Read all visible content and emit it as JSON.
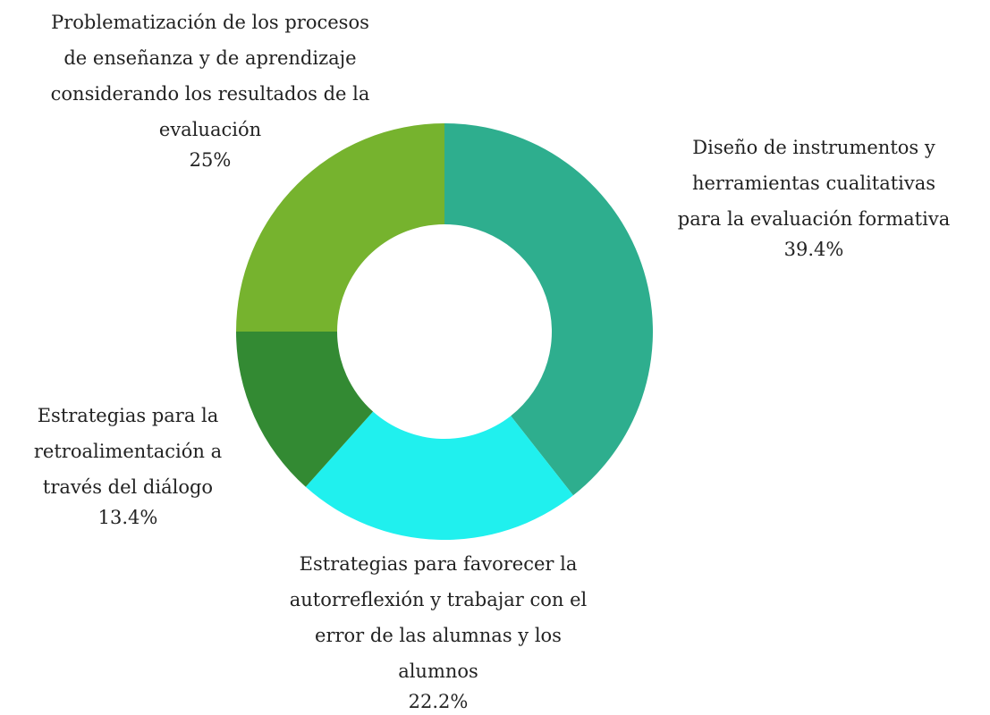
{
  "chart_data": {
    "type": "donut",
    "categories": [
      "Diseño de instrumentos y herramientas cualitativas para la evaluación formativa",
      "Estrategias para favorecer la autorreflexión y trabajar con el error de las alumnas y los alumnos",
      "Estrategias para la retroalimentación a través del diálogo",
      "Problematización de los procesos de enseñanza y de aprendizaje considerando los resultados de la evaluación"
    ],
    "values": [
      39.4,
      22.2,
      13.4,
      25
    ],
    "value_labels": [
      "39.4%",
      "22.2%",
      "13.4%",
      "25%"
    ],
    "colors": [
      "#2eae8e",
      "#20f0ee",
      "#338a33",
      "#76b32e"
    ]
  }
}
